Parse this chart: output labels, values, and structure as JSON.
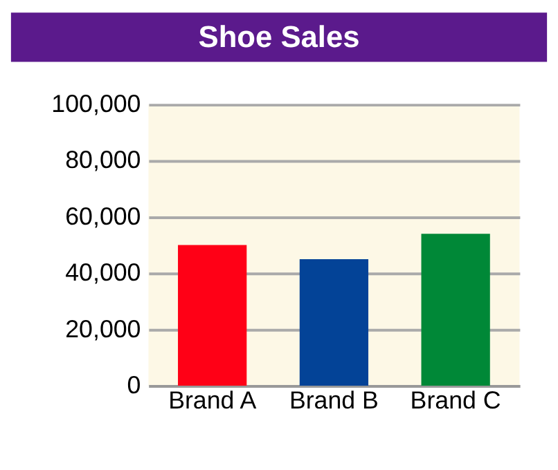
{
  "chart_data": {
    "type": "bar",
    "title": "Shoe Sales",
    "categories": [
      "Brand A",
      "Brand B",
      "Brand C"
    ],
    "values": [
      50000,
      45000,
      54000
    ],
    "colors": [
      "#ff0016",
      "#034397",
      "#008837"
    ],
    "ylim": [
      0,
      100000
    ],
    "yticks": [
      0,
      {
        "value": 20000,
        "label": "20,000"
      },
      {
        "value": 40000,
        "label": "40,000"
      },
      {
        "value": 60000,
        "label": "60,000"
      },
      {
        "value": 80000,
        "label": "80,000"
      },
      {
        "value": 100000,
        "label": "100,000"
      }
    ],
    "grid": "y"
  }
}
